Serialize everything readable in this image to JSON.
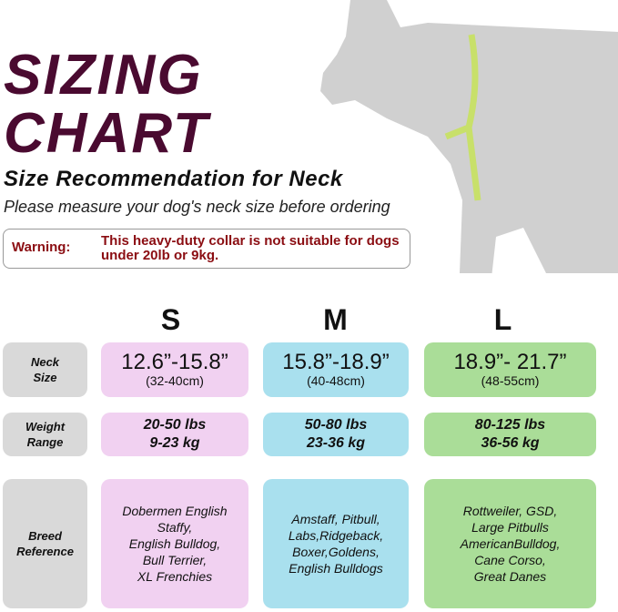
{
  "title": {
    "line1": "SIZING",
    "line2": "CHART"
  },
  "subtitle": "Size Recommendation for Neck",
  "instruction": "Please measure your dog's neck size before ordering",
  "warning": {
    "label": "Warning:",
    "message": "This heavy-duty collar is not suitable for dogs under 20lb or 9kg."
  },
  "sizes": [
    "S",
    "M",
    "L"
  ],
  "row_labels": [
    "Neck\nSize",
    "Weight\nRange",
    "Breed\nReference"
  ],
  "neck": [
    {
      "inch": "12.6”-15.8”",
      "cm": "(32-40cm)"
    },
    {
      "inch": "15.8”-18.9”",
      "cm": "(40-48cm)"
    },
    {
      "inch": "18.9”- 21.7”",
      "cm": "(48-55cm)"
    }
  ],
  "weight": [
    {
      "lbs": "20-50 lbs",
      "kg": "9-23 kg"
    },
    {
      "lbs": "50-80 lbs",
      "kg": "23-36 kg"
    },
    {
      "lbs": "80-125 lbs",
      "kg": "36-56 kg"
    }
  ],
  "breeds": [
    "Dobermen English\nStaffy,\nEnglish Bulldog,\nBull Terrier,\nXL Frenchies",
    "Amstaff, Pitbull,\nLabs,Ridgeback,\nBoxer,Goldens,\nEnglish Bulldogs",
    "Rottweiler, GSD,\nLarge Pitbulls\nAmericanBulldog,\nCane Corso,\nGreat Danes"
  ],
  "colors": {
    "title": "#4a0a30",
    "warning": "#8b0d12",
    "S": "#f1d1f1",
    "M": "#a9e0ee",
    "L": "#aadd98",
    "label_bg": "#d9d9d9"
  }
}
